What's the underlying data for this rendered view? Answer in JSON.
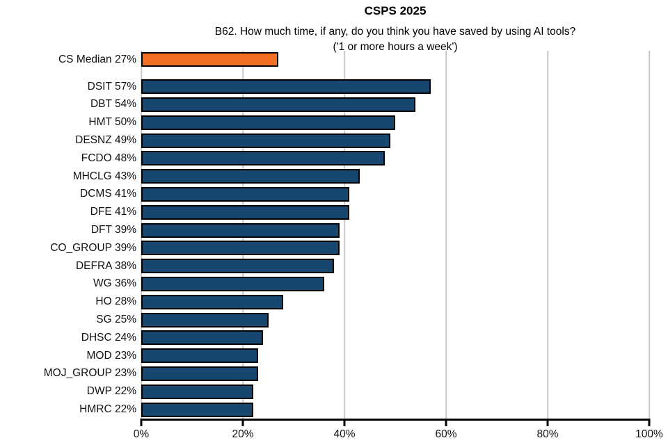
{
  "header": {
    "title": "CSPS 2025",
    "subtitle_line1": "B62. How much time, if any, do you think you have saved by using AI tools?",
    "subtitle_line2": "('1 or more hours a week')"
  },
  "chart_data": {
    "type": "bar",
    "orientation": "horizontal",
    "title": "CSPS 2025",
    "subtitle": "B62. How much time, if any, do you think you have saved by using AI tools? ('1 or more hours a week')",
    "xlim": [
      0,
      100
    ],
    "x_tick_values": [
      0,
      20,
      40,
      60,
      80,
      100
    ],
    "x_tick_labels": [
      "0%",
      "20%",
      "40%",
      "60%",
      "80%",
      "100%"
    ],
    "grid": "vertical",
    "legend": "none",
    "label_value_format": "{label} {value}%",
    "colors": {
      "median_bar": "#F26F24",
      "department_bar": "#17466F",
      "bar_border": "#000000",
      "gridline": "#C8C8C8",
      "axis": "#000000"
    },
    "bars": [
      {
        "label": "CS Median",
        "value": 27,
        "kind": "median"
      },
      {
        "label": "DSIT",
        "value": 57,
        "kind": "department"
      },
      {
        "label": "DBT",
        "value": 54,
        "kind": "department"
      },
      {
        "label": "HMT",
        "value": 50,
        "kind": "department"
      },
      {
        "label": "DESNZ",
        "value": 49,
        "kind": "department"
      },
      {
        "label": "FCDO",
        "value": 48,
        "kind": "department"
      },
      {
        "label": "MHCLG",
        "value": 43,
        "kind": "department"
      },
      {
        "label": "DCMS",
        "value": 41,
        "kind": "department"
      },
      {
        "label": "DFE",
        "value": 41,
        "kind": "department"
      },
      {
        "label": "DFT",
        "value": 39,
        "kind": "department"
      },
      {
        "label": "CO_GROUP",
        "value": 39,
        "kind": "department"
      },
      {
        "label": "DEFRA",
        "value": 38,
        "kind": "department"
      },
      {
        "label": "WG",
        "value": 36,
        "kind": "department"
      },
      {
        "label": "HO",
        "value": 28,
        "kind": "department"
      },
      {
        "label": "SG",
        "value": 25,
        "kind": "department"
      },
      {
        "label": "DHSC",
        "value": 24,
        "kind": "department"
      },
      {
        "label": "MOD",
        "value": 23,
        "kind": "department"
      },
      {
        "label": "MOJ_GROUP",
        "value": 23,
        "kind": "department"
      },
      {
        "label": "DWP",
        "value": 22,
        "kind": "department"
      },
      {
        "label": "HMRC",
        "value": 22,
        "kind": "department"
      }
    ]
  }
}
